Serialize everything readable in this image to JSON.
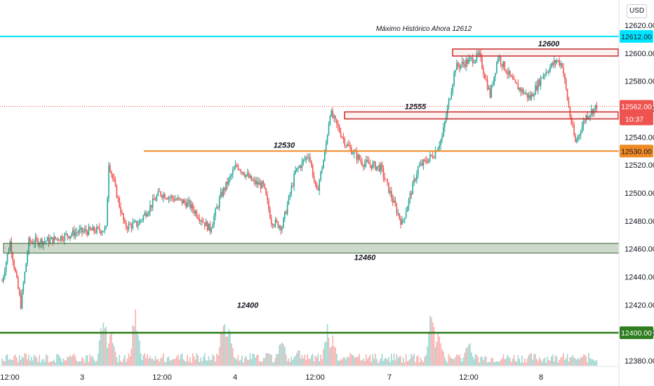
{
  "currency": "USD",
  "chart_data": {
    "type": "candlestick",
    "ylim": [
      12374,
      12632
    ],
    "y_ticks": [
      "12620.00",
      "12600.00",
      "12580.00",
      "12560.00",
      "12540.00",
      "12520.00",
      "12500.00",
      "12480.00",
      "12460.00",
      "12440.00",
      "12420.00",
      "12400.00",
      "12380.00"
    ],
    "x_ticks": [
      "12:00",
      "3",
      "12:00",
      "4",
      "12:00",
      "7",
      "12:00",
      "8"
    ],
    "levels": [
      {
        "value": 12612,
        "label": "Máximo Histórico Ahora 12612",
        "tag": "12612.00",
        "color": "#00e5ff"
      },
      {
        "value": 12600,
        "label": "12600",
        "color": "#c62828"
      },
      {
        "value": 12555,
        "label": "12555",
        "color": "#c62828"
      },
      {
        "value": 12530,
        "label": "12530",
        "tag": "12530.00",
        "color": "#f08a24"
      },
      {
        "value": 12460,
        "label": "12460",
        "color": "#3d6b3d"
      },
      {
        "value": 12400,
        "label": "12400",
        "tag": "12400.00",
        "color": "#2e7d1f"
      }
    ],
    "last_price": {
      "value": 12562,
      "tag": "12562.00",
      "countdown": "10:37",
      "color": "#ef5350"
    },
    "anchors": [
      [
        0,
        12437
      ],
      [
        6,
        12465
      ],
      [
        14,
        12420
      ],
      [
        20,
        12465
      ],
      [
        36,
        12466
      ],
      [
        56,
        12472
      ],
      [
        78,
        12474
      ],
      [
        80,
        12522
      ],
      [
        92,
        12476
      ],
      [
        102,
        12478
      ],
      [
        118,
        12500
      ],
      [
        140,
        12492
      ],
      [
        156,
        12474
      ],
      [
        164,
        12498
      ],
      [
        176,
        12520
      ],
      [
        188,
        12508
      ],
      [
        196,
        12505
      ],
      [
        202,
        12480
      ],
      [
        210,
        12476
      ],
      [
        220,
        12515
      ],
      [
        230,
        12528
      ],
      [
        236,
        12500
      ],
      [
        242,
        12528
      ],
      [
        246,
        12558
      ],
      [
        258,
        12535
      ],
      [
        270,
        12522
      ],
      [
        284,
        12518
      ],
      [
        294,
        12492
      ],
      [
        300,
        12478
      ],
      [
        312,
        12518
      ],
      [
        324,
        12528
      ],
      [
        330,
        12540
      ],
      [
        340,
        12590
      ],
      [
        358,
        12598
      ],
      [
        366,
        12570
      ],
      [
        372,
        12598
      ],
      [
        384,
        12578
      ],
      [
        396,
        12568
      ],
      [
        406,
        12585
      ],
      [
        416,
        12595
      ],
      [
        420,
        12592
      ],
      [
        426,
        12555
      ],
      [
        430,
        12536
      ],
      [
        438,
        12555
      ],
      [
        446,
        12562
      ]
    ],
    "volume_spikes": [
      [
        76,
        0.85
      ],
      [
        82,
        0.6
      ],
      [
        100,
        0.9
      ],
      [
        166,
        0.85
      ],
      [
        170,
        0.6
      ],
      [
        210,
        0.45
      ],
      [
        222,
        0.25
      ],
      [
        244,
        0.55
      ],
      [
        248,
        0.4
      ],
      [
        322,
        0.9
      ],
      [
        328,
        0.55
      ],
      [
        350,
        0.45
      ],
      [
        422,
        0.12
      ],
      [
        428,
        0.15
      ]
    ]
  }
}
